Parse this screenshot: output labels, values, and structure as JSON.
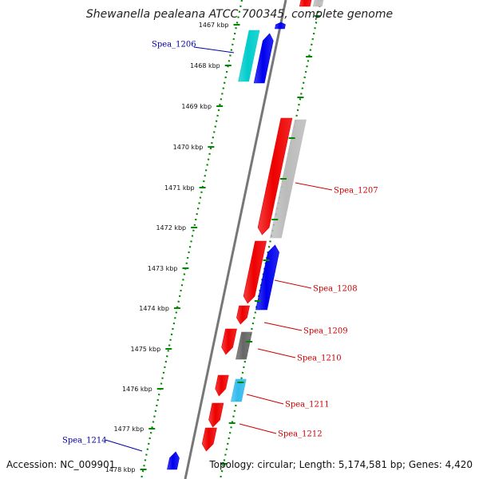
{
  "title": "Shewanella pealeana ATCC 700345, complete genome",
  "accession": "Accession: NC_009901",
  "topology": "Topology: circular; Length: 5,174,581 bp; Genes: 4,420",
  "colors": {
    "forward_cds": "#ee0000",
    "reverse_cds": "#0000ee",
    "other_feature_light": "#bbbbbb",
    "other_feature_dark": "#666666",
    "cyan_feature": "#00cccc",
    "sky_feature": "#33bbee",
    "backbone": "#777777",
    "tick_green": "#008800",
    "label_red": "#cc0000",
    "label_blue": "#0000aa"
  },
  "ticks": [
    {
      "label": "1467 kbp"
    },
    {
      "label": "1468 kbp"
    },
    {
      "label": "1469 kbp"
    },
    {
      "label": "1470 kbp"
    },
    {
      "label": "1471 kbp"
    },
    {
      "label": "1472 kbp"
    },
    {
      "label": "1473 kbp"
    },
    {
      "label": "1474 kbp"
    },
    {
      "label": "1475 kbp"
    },
    {
      "label": "1476 kbp"
    },
    {
      "label": "1477 kbp"
    },
    {
      "label": "1478 kbp"
    }
  ],
  "gene_labels": [
    {
      "name": "Spea_1206",
      "strand": "reverse"
    },
    {
      "name": "Spea_1207",
      "strand": "forward"
    },
    {
      "name": "Spea_1208",
      "strand": "forward"
    },
    {
      "name": "Spea_1209",
      "strand": "forward"
    },
    {
      "name": "Spea_1210",
      "strand": "forward"
    },
    {
      "name": "Spea_1211",
      "strand": "forward"
    },
    {
      "name": "Spea_1212",
      "strand": "forward"
    },
    {
      "name": "Spea_1214",
      "strand": "reverse"
    }
  ]
}
